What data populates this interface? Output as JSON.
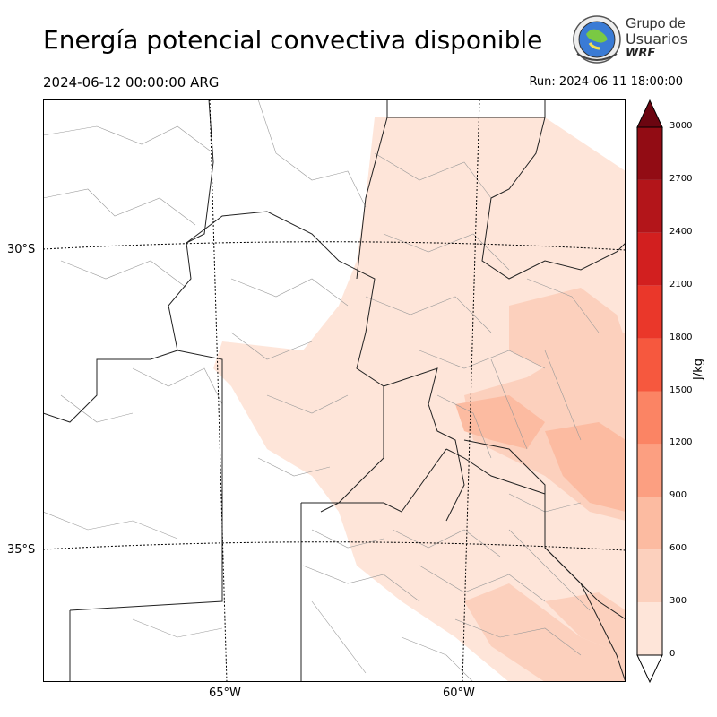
{
  "header": {
    "title": "Energía potencial convectiva disponible",
    "valid_time": "2024-06-12 00:00:00 ARG",
    "run_time": "Run: 2024-06-11 18:00:00"
  },
  "logo": {
    "line1": "Grupo de",
    "line2": "Usuarios",
    "line3": "WRF"
  },
  "map": {
    "lat_labels": [
      "30°S",
      "35°S"
    ],
    "lon_labels": [
      "65°W",
      "60°W"
    ]
  },
  "colorbar": {
    "unit": "J/kg",
    "ticks": [
      "0",
      "300",
      "600",
      "900",
      "1200",
      "1500",
      "1800",
      "2100",
      "2400",
      "2700",
      "3000"
    ],
    "colors": [
      "#fee5d9",
      "#fcd0bd",
      "#fcbba1",
      "#fc9f81",
      "#fb8464",
      "#f6583e",
      "#ea372a",
      "#d21f1f",
      "#b3151a",
      "#920c14",
      "#6b0510"
    ]
  }
}
